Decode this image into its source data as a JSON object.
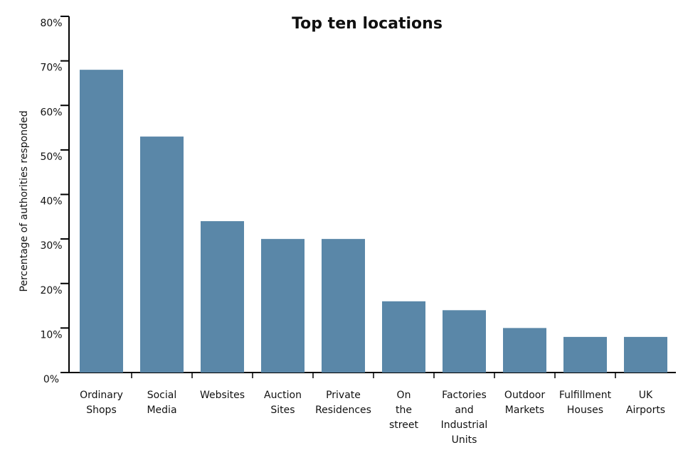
{
  "chart_data": {
    "type": "bar",
    "title": "Top ten locations",
    "y_label": "Percentage of authorities responded",
    "categories": [
      "Ordinary\nShops",
      "Social\nMedia",
      "Websites",
      "Auction\nSites",
      "Private\nResidences",
      "On\nthe\nstreet",
      "Factories\nand\nIndustrial\nUnits",
      "Outdoor\nMarkets",
      "Fulfillment\nHouses",
      "UK\nAirports"
    ],
    "values": [
      68,
      53,
      34,
      30,
      30,
      16,
      14,
      10,
      8,
      8
    ],
    "color": "#5a87a8",
    "ylim": [
      0,
      80
    ],
    "yticks": [
      {
        "value": 0,
        "label": "0%"
      },
      {
        "value": 10,
        "label": "10%"
      },
      {
        "value": 20,
        "label": "20%"
      },
      {
        "value": 30,
        "label": "30%"
      },
      {
        "value": 40,
        "label": "40%"
      },
      {
        "value": 50,
        "label": "50%"
      },
      {
        "value": 60,
        "label": "60%"
      },
      {
        "value": 70,
        "label": "70%"
      },
      {
        "value": 80,
        "label": "80%"
      }
    ],
    "grid": false
  }
}
